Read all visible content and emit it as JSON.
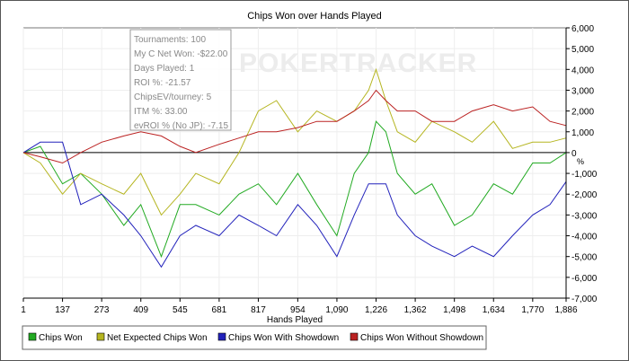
{
  "chart_data": {
    "type": "line",
    "title": "Chips Won over Hands Played",
    "xlabel": "Hands Played",
    "ylabel": "",
    "right_axis_label": "%",
    "xlim": [
      1,
      1886
    ],
    "ylim": [
      -7000,
      6000
    ],
    "x_ticks": [
      1,
      137,
      273,
      409,
      545,
      681,
      817,
      954,
      1090,
      1226,
      1362,
      1498,
      1634,
      1770,
      1886
    ],
    "x_tick_labels": [
      "1",
      "137",
      "273",
      "409",
      "545",
      "681",
      "817",
      "954",
      "1,090",
      "1,226",
      "1,362",
      "1,498",
      "1,634",
      "1,770",
      "1,886"
    ],
    "y_ticks": [
      6000,
      5000,
      4000,
      3000,
      2000,
      1000,
      0,
      -1000,
      -2000,
      -3000,
      -4000,
      -5000,
      -6000,
      -7000
    ],
    "y_tick_labels": [
      "6,000",
      "5,000",
      "4,000",
      "3,000",
      "2,000",
      "1,000",
      "0",
      "-1,000",
      "-2,000",
      "-3,000",
      "-4,000",
      "-5,000",
      "-6,000",
      "-7,000"
    ],
    "y_axis_side": "right",
    "grid": true,
    "legend_placement": "bottom",
    "x": [
      1,
      60,
      137,
      200,
      273,
      350,
      409,
      480,
      545,
      600,
      681,
      750,
      817,
      880,
      954,
      1020,
      1090,
      1150,
      1200,
      1226,
      1260,
      1300,
      1362,
      1420,
      1498,
      1560,
      1634,
      1700,
      1770,
      1830,
      1886
    ],
    "series": [
      {
        "name": "Chips Won",
        "color": "#22aa22",
        "values": [
          0,
          300,
          -1500,
          -1000,
          -2000,
          -3500,
          -2500,
          -5000,
          -2500,
          -2500,
          -3000,
          -2000,
          -1500,
          -2500,
          -1000,
          -2500,
          -4000,
          -1000,
          0,
          1500,
          1000,
          -1000,
          -2000,
          -1500,
          -3500,
          -3000,
          -1500,
          -2000,
          -500,
          -500,
          0
        ]
      },
      {
        "name": "Net Expected Chips Won",
        "color": "#b5b520",
        "values": [
          0,
          -500,
          -2000,
          -1000,
          -1500,
          -2000,
          -1000,
          -3000,
          -2000,
          -1000,
          -1500,
          0,
          2000,
          2500,
          1000,
          2000,
          1500,
          2000,
          3000,
          4000,
          2500,
          1000,
          500,
          1500,
          1000,
          500,
          1500,
          200,
          500,
          500,
          700
        ]
      },
      {
        "name": "Chips Won With Showdown",
        "color": "#2222bb",
        "values": [
          0,
          500,
          500,
          -2500,
          -2000,
          -3000,
          -4000,
          -5500,
          -4000,
          -3500,
          -4000,
          -3000,
          -3500,
          -4000,
          -2500,
          -3500,
          -5000,
          -3000,
          -1500,
          -1500,
          -1500,
          -3000,
          -4000,
          -4500,
          -5000,
          -4500,
          -5000,
          -4000,
          -3000,
          -2500,
          -1400
        ]
      },
      {
        "name": "Chips Won Without Showdown",
        "color": "#bb2222",
        "values": [
          0,
          -200,
          -500,
          0,
          500,
          800,
          1000,
          800,
          300,
          0,
          400,
          700,
          1000,
          1000,
          1200,
          1500,
          1500,
          2000,
          2500,
          3000,
          2500,
          2000,
          2000,
          1500,
          1500,
          2000,
          2300,
          2000,
          2200,
          1500,
          1300
        ]
      }
    ],
    "tooltip": [
      "Tournaments: 100",
      "My C Net Won: -$22.00",
      "Days Played: 1",
      "ROI %: -21.57",
      "ChipsEV/tourney: 5",
      "ITM %: 33.00",
      "evROI % (No JP): -7.15"
    ],
    "watermark": "POKERTRACKER"
  }
}
